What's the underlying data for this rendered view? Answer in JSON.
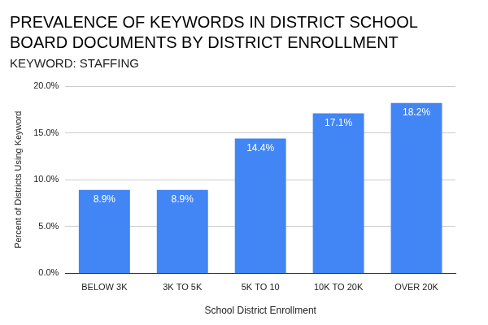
{
  "chart_data": {
    "type": "bar",
    "title": "PREVALENCE OF KEYWORDS IN DISTRICT SCHOOL BOARD DOCUMENTS BY DISTRICT ENROLLMENT",
    "subtitle": "KEYWORD: STAFFING",
    "x_label": "School District Enrollment",
    "y_label": "Percent of Districts Using Keyword",
    "categories": [
      "BELOW 3K",
      "3K TO 5K",
      "5K TO 10",
      "10K TO 20K",
      "OVER 20K"
    ],
    "values": [
      8.9,
      8.9,
      14.4,
      17.1,
      18.2
    ],
    "value_labels": [
      "8.9%",
      "8.9%",
      "14.4%",
      "17.1%",
      "18.2%"
    ],
    "color": "#4285f4",
    "ylim": [
      0,
      20
    ],
    "yticks": [
      {
        "value": 0,
        "label": "0.0%"
      },
      {
        "value": 5,
        "label": "5.0%"
      },
      {
        "value": 10,
        "label": "10.0%"
      },
      {
        "value": 15,
        "label": "15.0%"
      },
      {
        "value": 20,
        "label": "20.0%"
      }
    ],
    "grid": true,
    "data_labels": true
  }
}
